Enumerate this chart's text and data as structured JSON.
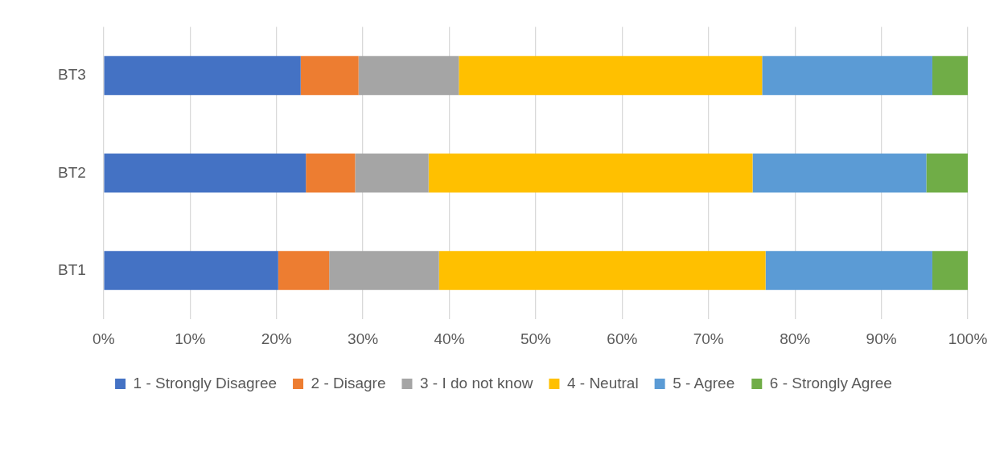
{
  "chart_data": {
    "type": "bar",
    "orientation": "horizontal",
    "stacked": true,
    "categories": [
      "BT3",
      "BT2",
      "BT1"
    ],
    "series": [
      {
        "name": "1 - Strongly Disagree",
        "color": "#4472c4",
        "values": [
          22.8,
          23.4,
          20.2
        ]
      },
      {
        "name": "2 - Disagre",
        "color": "#ed7d31",
        "values": [
          6.7,
          5.7,
          5.9
        ]
      },
      {
        "name": "3 - I do not know",
        "color": "#a5a5a5",
        "values": [
          11.6,
          8.5,
          12.7
        ]
      },
      {
        "name": "4 - Neutral",
        "color": "#ffc000",
        "values": [
          35.1,
          37.5,
          37.8
        ]
      },
      {
        "name": "5 - Agree",
        "color": "#5b9bd5",
        "values": [
          19.7,
          20.1,
          19.3
        ]
      },
      {
        "name": "6 - Strongly Agree",
        "color": "#70ad47",
        "values": [
          4.1,
          4.8,
          4.1
        ]
      }
    ],
    "xlim": [
      0,
      100
    ],
    "xticks": [
      {
        "value": 0,
        "label": "0%"
      },
      {
        "value": 10,
        "label": "10%"
      },
      {
        "value": 20,
        "label": "20%"
      },
      {
        "value": 30,
        "label": "30%"
      },
      {
        "value": 40,
        "label": "40%"
      },
      {
        "value": 50,
        "label": "50%"
      },
      {
        "value": 60,
        "label": "60%"
      },
      {
        "value": 70,
        "label": "70%"
      },
      {
        "value": 80,
        "label": "80%"
      },
      {
        "value": 90,
        "label": "90%"
      },
      {
        "value": 100,
        "label": "100%"
      }
    ],
    "grid": "x",
    "legend": "bottom"
  }
}
